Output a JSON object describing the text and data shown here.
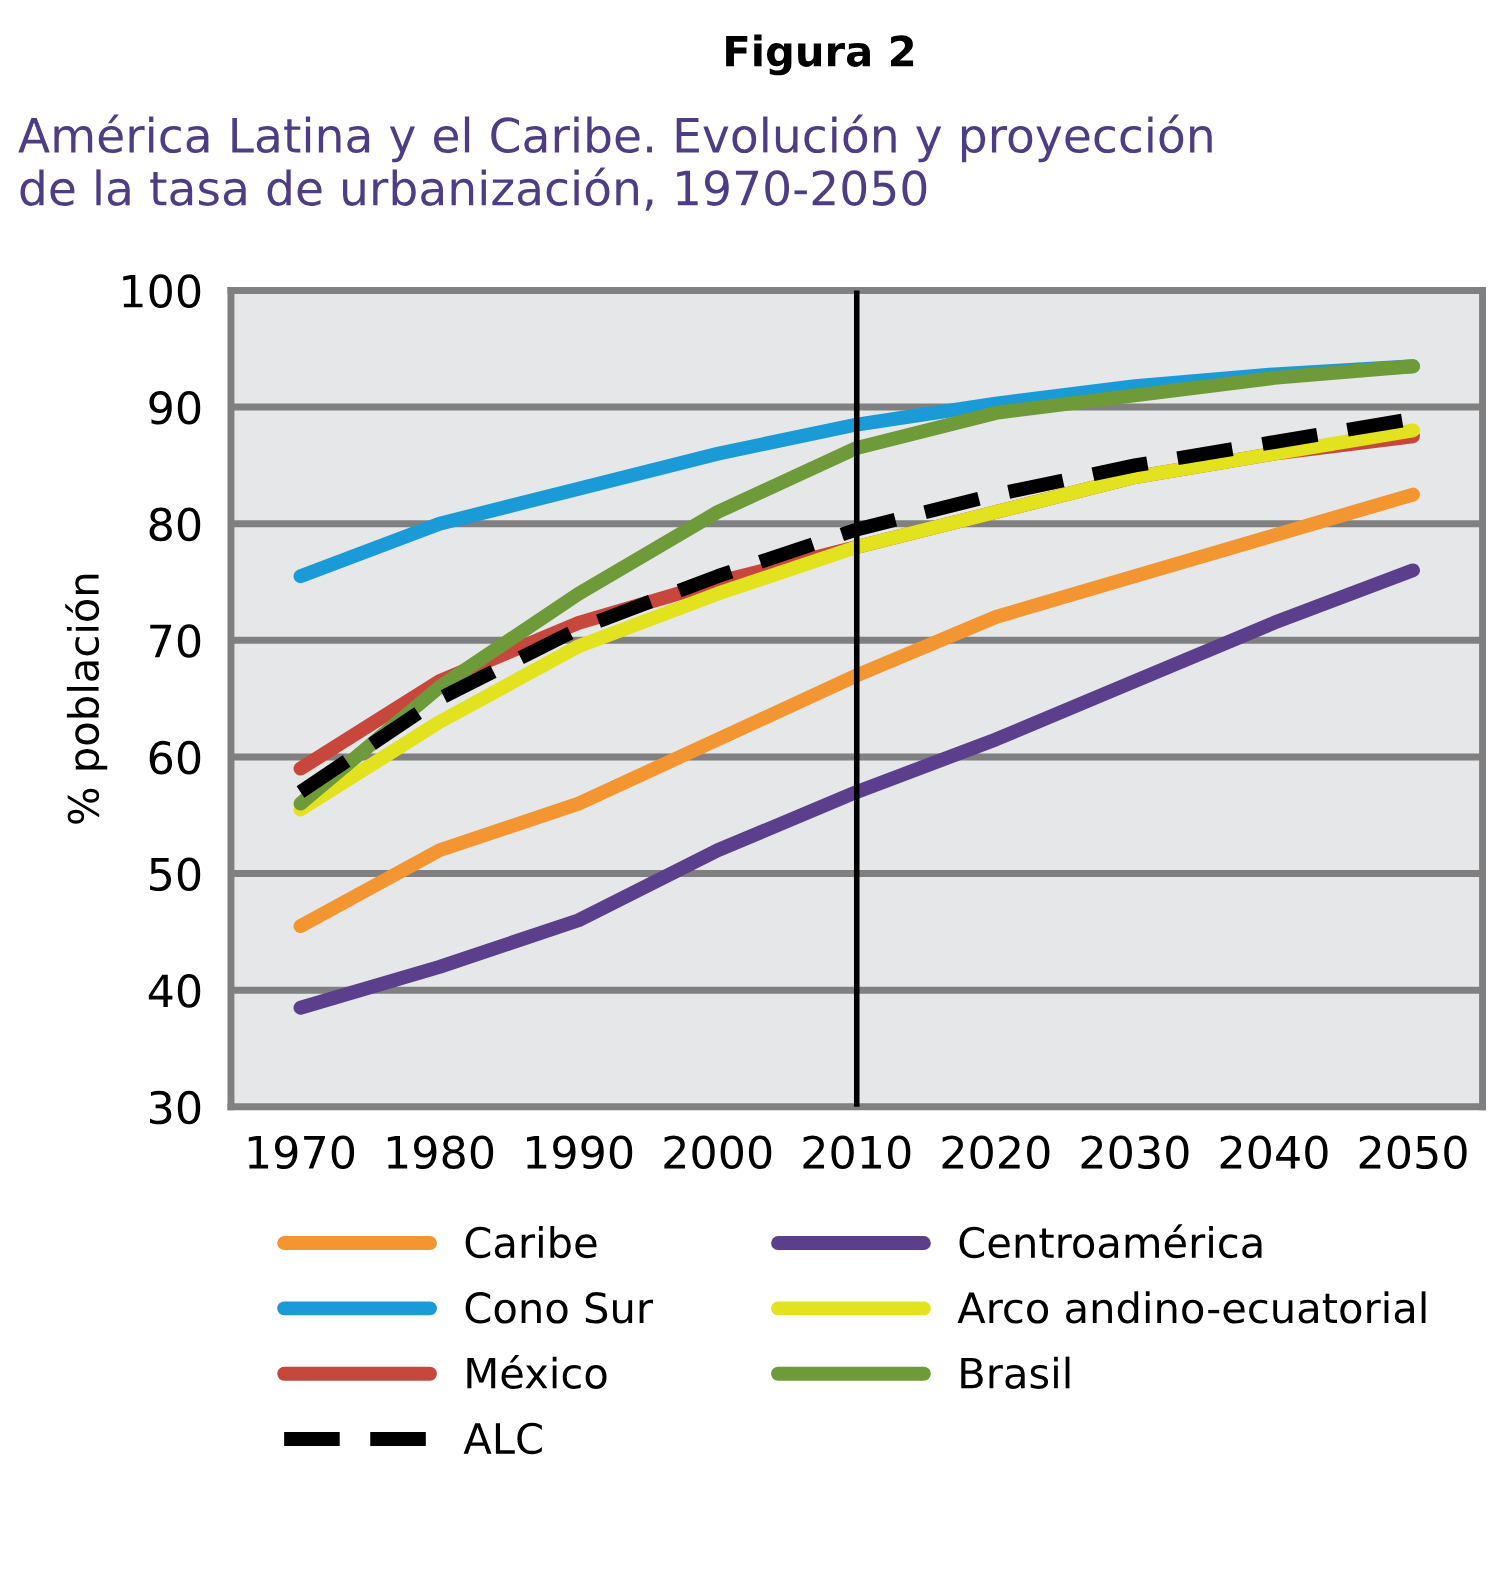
{
  "chart_data": {
    "type": "line",
    "title": "Figura 2",
    "subtitle": "América Latina y el Caribe. Evolución y proyección\nde la tasa de urbanización, 1970-2050",
    "ylabel": "% población",
    "x": [
      1970,
      1980,
      1990,
      2000,
      2010,
      2020,
      2030,
      2040,
      2050
    ],
    "xlim": [
      1965,
      2055
    ],
    "xticks": [
      1970,
      1980,
      1990,
      2000,
      2010,
      2020,
      2030,
      2040,
      2050
    ],
    "ylim": [
      30,
      100
    ],
    "yticks": [
      30,
      40,
      50,
      60,
      70,
      80,
      90,
      100
    ],
    "grid": "y",
    "legend": "bottom",
    "marker": "none",
    "ref_lines": [
      {
        "axis": "x",
        "value": 2010,
        "color": "#000000"
      }
    ],
    "series": [
      {
        "name": "Caribe",
        "color": "#f39530",
        "values": [
          45.5,
          52,
          56,
          61.5,
          67,
          72,
          75.5,
          79,
          82.5
        ]
      },
      {
        "name": "Cono Sur",
        "color": "#1a9ad6",
        "values": [
          75.5,
          80,
          83,
          86,
          88.5,
          90.3,
          91.8,
          92.8,
          93.5
        ]
      },
      {
        "name": "México",
        "color": "#c8473d",
        "values": [
          59,
          66.5,
          71.5,
          75,
          78,
          81,
          84,
          86,
          87.5
        ]
      },
      {
        "name": "ALC",
        "color": "#000000",
        "line_style": "dashed",
        "values": [
          57,
          65,
          71,
          75.5,
          79.5,
          82.5,
          85,
          87,
          89
        ]
      },
      {
        "name": "Centroamérica",
        "color": "#5b3f8c",
        "values": [
          38.5,
          42,
          46,
          52,
          57,
          61.5,
          66.5,
          71.5,
          76
        ]
      },
      {
        "name": "Arco andino-ecuatorial",
        "color": "#e3e21f",
        "values": [
          55.5,
          63,
          69.5,
          74,
          78,
          81,
          84,
          86,
          88
        ]
      },
      {
        "name": "Brasil",
        "color": "#6f9a3a",
        "values": [
          56,
          66,
          74,
          81,
          86.5,
          89.5,
          91,
          92.5,
          93.5
        ]
      }
    ]
  }
}
